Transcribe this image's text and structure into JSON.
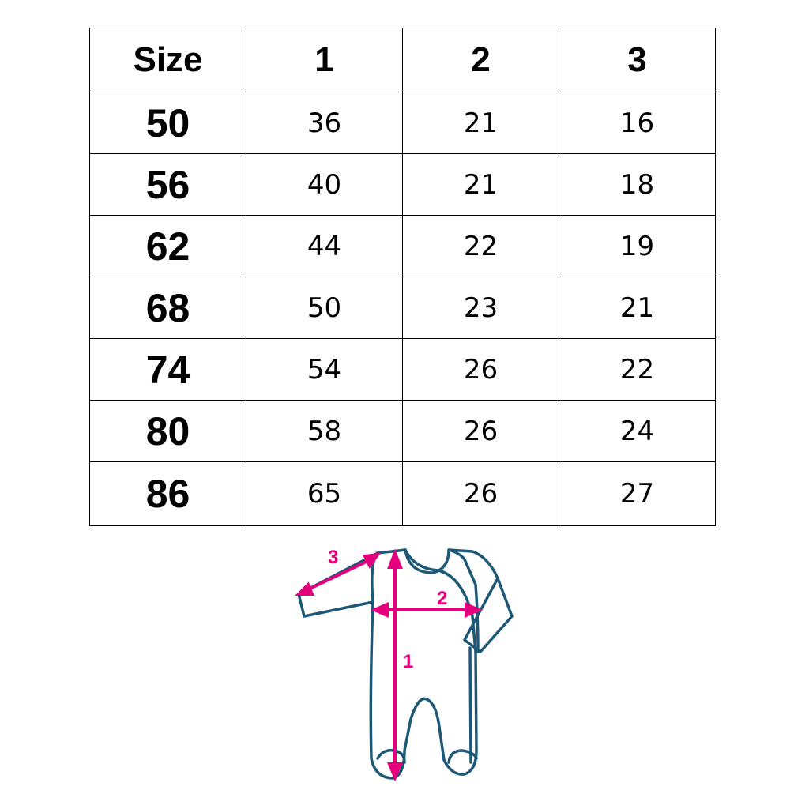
{
  "table": {
    "headers": [
      "Size",
      "1",
      "2",
      "3"
    ],
    "rows": [
      [
        "50",
        "36",
        "21",
        "16"
      ],
      [
        "56",
        "40",
        "21",
        "18"
      ],
      [
        "62",
        "44",
        "22",
        "19"
      ],
      [
        "68",
        "50",
        "23",
        "21"
      ],
      [
        "74",
        "54",
        "26",
        "22"
      ],
      [
        "80",
        "58",
        "26",
        "24"
      ],
      [
        "86",
        "65",
        "26",
        "27"
      ]
    ]
  },
  "diagram": {
    "labels": [
      "1",
      "2",
      "3"
    ],
    "outline_color": "#1d5876",
    "arrow_color": "#e4007c"
  }
}
